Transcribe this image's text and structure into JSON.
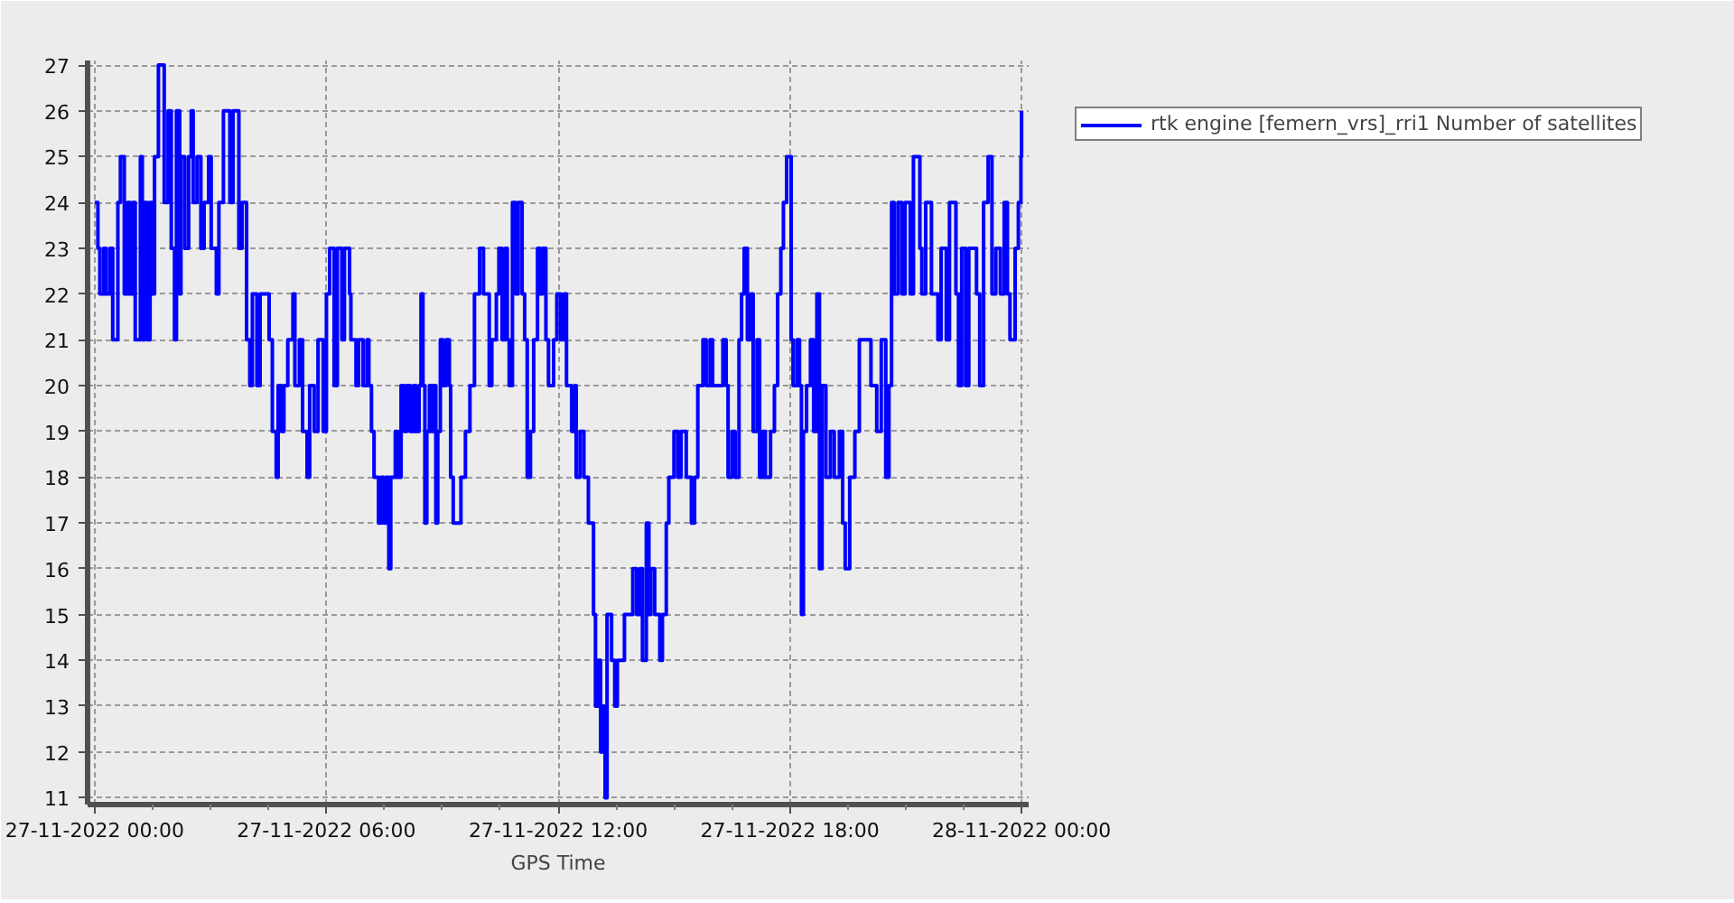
{
  "chart_data": {
    "type": "step",
    "xlabel": "GPS Time",
    "x": [
      "2022-11-27T00:00",
      "2022-11-27T00:05",
      "2022-11-27T00:08",
      "2022-11-27T00:14",
      "2022-11-27T00:18",
      "2022-11-27T00:24",
      "2022-11-27T00:28",
      "2022-11-27T00:36",
      "2022-11-27T00:40",
      "2022-11-27T00:46",
      "2022-11-27T00:51",
      "2022-11-27T00:55",
      "2022-11-27T00:59",
      "2022-11-27T01:03",
      "2022-11-27T01:11",
      "2022-11-27T01:14",
      "2022-11-27T01:18",
      "2022-11-27T01:22",
      "2022-11-27T01:26",
      "2022-11-27T01:29",
      "2022-11-27T01:33",
      "2022-11-27T01:39",
      "2022-11-27T01:48",
      "2022-11-27T01:54",
      "2022-11-27T01:59",
      "2022-11-27T02:04",
      "2022-11-27T02:07",
      "2022-11-27T02:12",
      "2022-11-27T02:14",
      "2022-11-27T02:20",
      "2022-11-27T02:26",
      "2022-11-27T02:30",
      "2022-11-27T02:33",
      "2022-11-27T02:39",
      "2022-11-27T02:45",
      "2022-11-27T02:50",
      "2022-11-27T02:57",
      "2022-11-27T03:01",
      "2022-11-27T03:09",
      "2022-11-27T03:13",
      "2022-11-27T03:20",
      "2022-11-27T03:30",
      "2022-11-27T03:35",
      "2022-11-27T03:44",
      "2022-11-27T03:49",
      "2022-11-27T03:56",
      "2022-11-27T04:01",
      "2022-11-27T04:05",
      "2022-11-27T04:12",
      "2022-11-27T04:17",
      "2022-11-27T04:31",
      "2022-11-27T04:36",
      "2022-11-27T04:42",
      "2022-11-27T04:45",
      "2022-11-27T04:50",
      "2022-11-27T04:54",
      "2022-11-27T05:00",
      "2022-11-27T05:08",
      "2022-11-27T05:11",
      "2022-11-27T05:18",
      "2022-11-27T05:23",
      "2022-11-27T05:30",
      "2022-11-27T05:34",
      "2022-11-27T05:41",
      "2022-11-27T05:47",
      "2022-11-27T05:55",
      "2022-11-27T06:00",
      "2022-11-27T06:05",
      "2022-11-27T06:12",
      "2022-11-27T06:17",
      "2022-11-27T06:24",
      "2022-11-27T06:28",
      "2022-11-27T06:36",
      "2022-11-27T06:38",
      "2022-11-27T06:46",
      "2022-11-27T06:50",
      "2022-11-27T06:57",
      "2022-11-27T07:03",
      "2022-11-27T07:06",
      "2022-11-27T07:10",
      "2022-11-27T07:14",
      "2022-11-27T07:21",
      "2022-11-27T07:25",
      "2022-11-27T07:29",
      "2022-11-27T07:33",
      "2022-11-27T07:37",
      "2022-11-27T07:40",
      "2022-11-27T07:47",
      "2022-11-27T07:51",
      "2022-11-27T07:56",
      "2022-11-27T08:01",
      "2022-11-27T08:05",
      "2022-11-27T08:10",
      "2022-11-27T08:15",
      "2022-11-27T08:19",
      "2022-11-27T08:24",
      "2022-11-27T08:27",
      "2022-11-27T08:30",
      "2022-11-27T08:33",
      "2022-11-27T08:36",
      "2022-11-27T08:40",
      "2022-11-27T08:44",
      "2022-11-27T08:47",
      "2022-11-27T08:50",
      "2022-11-27T08:53",
      "2022-11-27T08:57",
      "2022-11-27T09:01",
      "2022-11-27T09:06",
      "2022-11-27T09:11",
      "2022-11-27T09:13",
      "2022-11-27T09:17",
      "2022-11-27T09:29",
      "2022-11-27T09:36",
      "2022-11-27T09:43",
      "2022-11-27T09:50",
      "2022-11-27T09:58",
      "2022-11-27T10:04",
      "2022-11-27T10:13",
      "2022-11-27T10:17",
      "2022-11-27T10:24",
      "2022-11-27T10:28",
      "2022-11-27T10:33",
      "2022-11-27T10:38",
      "2022-11-27T10:41",
      "2022-11-27T10:44",
      "2022-11-27T10:49",
      "2022-11-27T10:54",
      "2022-11-27T10:58",
      "2022-11-27T11:04",
      "2022-11-27T11:08",
      "2022-11-27T11:12",
      "2022-11-27T11:17",
      "2022-11-27T11:22",
      "2022-11-27T11:28",
      "2022-11-27T11:32",
      "2022-11-27T11:36",
      "2022-11-27T11:41",
      "2022-11-27T11:45",
      "2022-11-27T11:53",
      "2022-11-27T11:58",
      "2022-11-27T12:04",
      "2022-11-27T12:09",
      "2022-11-27T12:13",
      "2022-11-27T12:21",
      "2022-11-27T12:26",
      "2022-11-27T12:28",
      "2022-11-27T12:34",
      "2022-11-27T12:40",
      "2022-11-27T12:47",
      "2022-11-27T12:55",
      "2022-11-27T12:58",
      "2022-11-27T13:02",
      "2022-11-27T13:06",
      "2022-11-27T13:10",
      "2022-11-27T13:13",
      "2022-11-27T13:16",
      "2022-11-27T13:23",
      "2022-11-27T13:28",
      "2022-11-27T13:32",
      "2022-11-27T13:43",
      "2022-11-27T13:56",
      "2022-11-27T14:02",
      "2022-11-27T14:07",
      "2022-11-27T14:11",
      "2022-11-27T14:17",
      "2022-11-27T14:21",
      "2022-11-27T14:24",
      "2022-11-27T14:30",
      "2022-11-27T14:38",
      "2022-11-27T14:42",
      "2022-11-27T14:48",
      "2022-11-27T14:52",
      "2022-11-27T15:00",
      "2022-11-27T15:06",
      "2022-11-27T15:11",
      "2022-11-27T15:19",
      "2022-11-27T15:27",
      "2022-11-27T15:32",
      "2022-11-27T15:37",
      "2022-11-27T15:45",
      "2022-11-27T15:50",
      "2022-11-27T15:56",
      "2022-11-27T16:00",
      "2022-11-27T16:16",
      "2022-11-27T16:21",
      "2022-11-27T16:24",
      "2022-11-27T16:30",
      "2022-11-27T16:35",
      "2022-11-27T16:41",
      "2022-11-27T16:45",
      "2022-11-27T16:49",
      "2022-11-27T16:54",
      "2022-11-27T16:59",
      "2022-11-27T17:03",
      "2022-11-27T17:09",
      "2022-11-27T17:13",
      "2022-11-27T17:18",
      "2022-11-27T17:22",
      "2022-11-27T17:30",
      "2022-11-27T17:36",
      "2022-11-27T17:41",
      "2022-11-27T17:46",
      "2022-11-27T17:50",
      "2022-11-27T17:55",
      "2022-11-27T18:02",
      "2022-11-27T18:05",
      "2022-11-27T18:11",
      "2022-11-27T18:15",
      "2022-11-27T18:18",
      "2022-11-27T18:21",
      "2022-11-27T18:26",
      "2022-11-27T18:32",
      "2022-11-27T18:37",
      "2022-11-27T18:42",
      "2022-11-27T18:46",
      "2022-11-27T18:50",
      "2022-11-27T18:56",
      "2022-11-27T19:03",
      "2022-11-27T19:09",
      "2022-11-27T19:17",
      "2022-11-27T19:22",
      "2022-11-27T19:26",
      "2022-11-27T19:33",
      "2022-11-27T19:41",
      "2022-11-27T19:48",
      "2022-11-27T20:06",
      "2022-11-27T20:15",
      "2022-11-27T20:22",
      "2022-11-27T20:29",
      "2022-11-27T20:34",
      "2022-11-27T20:38",
      "2022-11-27T20:42",
      "2022-11-27T20:48",
      "2022-11-27T20:54",
      "2022-11-27T20:59",
      "2022-11-27T21:07",
      "2022-11-27T21:12",
      "2022-11-27T21:22",
      "2022-11-27T21:25",
      "2022-11-27T21:31",
      "2022-11-27T21:40",
      "2022-11-27T21:50",
      "2022-11-27T21:55",
      "2022-11-27T22:03",
      "2022-11-27T22:08",
      "2022-11-27T22:18",
      "2022-11-27T22:22",
      "2022-11-27T22:27",
      "2022-11-27T22:33",
      "2022-11-27T22:38",
      "2022-11-27T22:50",
      "2022-11-27T22:55",
      "2022-11-27T23:01",
      "2022-11-27T23:08",
      "2022-11-27T23:14",
      "2022-11-27T23:20",
      "2022-11-27T23:27",
      "2022-11-27T23:33",
      "2022-11-27T23:38",
      "2022-11-27T23:42",
      "2022-11-27T23:50",
      "2022-11-27T23:55",
      "2022-11-27T23:59",
      "2022-11-28T00:00"
    ],
    "series": [
      {
        "name": "rtk engine [femern_vrs]_rri1 Number of satellites",
        "color": "#0000ff",
        "values": [
          24,
          23,
          22,
          23,
          22,
          23,
          21,
          24,
          25,
          22,
          24,
          22,
          24,
          21,
          25,
          21,
          24,
          21,
          24,
          22,
          25,
          27,
          24,
          26,
          23,
          21,
          26,
          22,
          25,
          23,
          25,
          26,
          24,
          25,
          23,
          24,
          25,
          23,
          22,
          24,
          26,
          24,
          26,
          23,
          24,
          21,
          20,
          22,
          20,
          22,
          21,
          19,
          18,
          20,
          19,
          20,
          21,
          22,
          20,
          21,
          19,
          18,
          20,
          19,
          21,
          19,
          22,
          23,
          20,
          23,
          21,
          23,
          22,
          21,
          20,
          21,
          20,
          21,
          20,
          19,
          18,
          17,
          18,
          17,
          18,
          16,
          18,
          19,
          18,
          20,
          19,
          20,
          19,
          20,
          19,
          20,
          22,
          20,
          17,
          19,
          20,
          19,
          20,
          17,
          19,
          21,
          20,
          21,
          20,
          18,
          17,
          18,
          19,
          20,
          22,
          23,
          22,
          20,
          21,
          22,
          23,
          21,
          23,
          21,
          20,
          24,
          22,
          24,
          22,
          21,
          18,
          19,
          21,
          23,
          22,
          23,
          21,
          20,
          21,
          22,
          21,
          22,
          20,
          19,
          20,
          18,
          19,
          18,
          17,
          15,
          13,
          14,
          12,
          13,
          11,
          15,
          14,
          13,
          14,
          15,
          16,
          15,
          16,
          14,
          17,
          15,
          16,
          15,
          14,
          15,
          17,
          18,
          19,
          18,
          19,
          18,
          17,
          18,
          20,
          21,
          20,
          21,
          20,
          21,
          20,
          18,
          19,
          18,
          21,
          22,
          23,
          21,
          22,
          19,
          21,
          18,
          19,
          18,
          19,
          20,
          22,
          23,
          24,
          25,
          21,
          20,
          21,
          20,
          15,
          19,
          20,
          21,
          19,
          22,
          16,
          20,
          18,
          19,
          18,
          19,
          17,
          16,
          18,
          19,
          21,
          20,
          19,
          21,
          18,
          20,
          24,
          22,
          24,
          22,
          24,
          22,
          25,
          23,
          22,
          24,
          22,
          21,
          23,
          21,
          24,
          22,
          20,
          23,
          20,
          23,
          22,
          20,
          24,
          25,
          22,
          23,
          22,
          24,
          22,
          21,
          23,
          24,
          25,
          26
        ]
      }
    ],
    "xlim": [
      "2022-11-26T23:49",
      "2022-11-28T00:11"
    ],
    "xticks": [
      {
        "value": "2022-11-27T00:00",
        "label": "27-11-2022 00:00"
      },
      {
        "value": "2022-11-27T01:30",
        "label": null
      },
      {
        "value": "2022-11-27T03:00",
        "label": null
      },
      {
        "value": "2022-11-27T04:30",
        "label": null
      },
      {
        "value": "2022-11-27T06:00",
        "label": "27-11-2022 06:00"
      },
      {
        "value": "2022-11-27T07:30",
        "label": null
      },
      {
        "value": "2022-11-27T09:00",
        "label": null
      },
      {
        "value": "2022-11-27T10:30",
        "label": null
      },
      {
        "value": "2022-11-27T12:00",
        "label": "27-11-2022 12:00"
      },
      {
        "value": "2022-11-27T13:30",
        "label": null
      },
      {
        "value": "2022-11-27T15:00",
        "label": null
      },
      {
        "value": "2022-11-27T16:30",
        "label": null
      },
      {
        "value": "2022-11-27T18:00",
        "label": "27-11-2022 18:00"
      },
      {
        "value": "2022-11-27T19:30",
        "label": null
      },
      {
        "value": "2022-11-27T21:00",
        "label": null
      },
      {
        "value": "2022-11-27T22:30",
        "label": null
      },
      {
        "value": "2022-11-28T00:00",
        "label": "28-11-2022 00:00"
      }
    ],
    "ylim": [
      10.85,
      27.1
    ],
    "yticks": [
      11,
      12,
      13,
      14,
      15,
      16,
      17,
      18,
      19,
      20,
      21,
      22,
      23,
      24,
      25,
      26,
      27
    ],
    "grid": true,
    "legend": "top right",
    "line_style": "solid"
  }
}
